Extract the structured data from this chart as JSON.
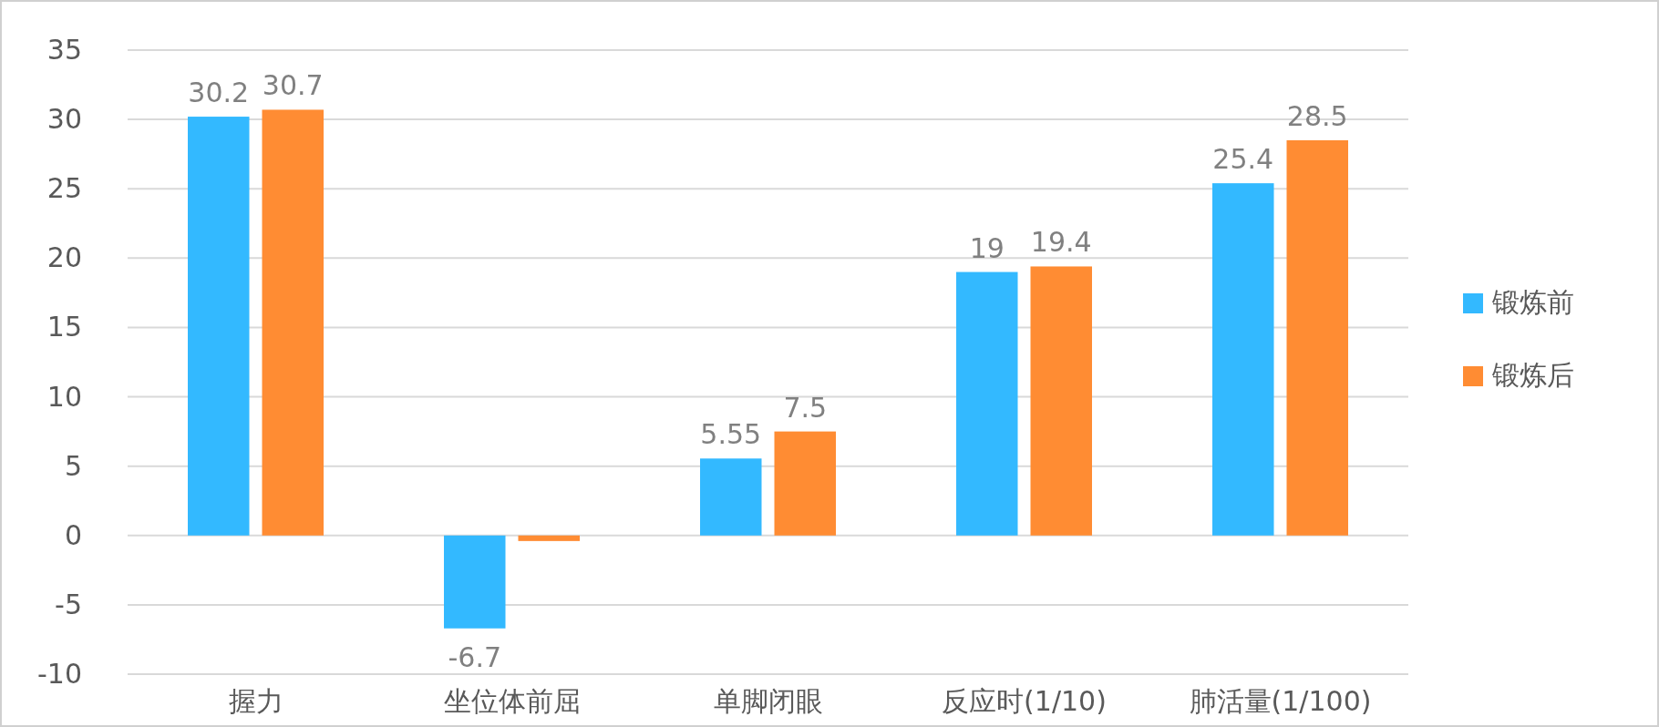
{
  "chart_data": {
    "type": "bar",
    "categories": [
      "握力",
      "坐位体前屈",
      "单脚闭眼",
      "反应时(1/10)",
      "肺活量(1/100)"
    ],
    "series": [
      {
        "name": "锻炼前",
        "color": "#33b9ff",
        "values": [
          30.2,
          -6.7,
          5.55,
          19,
          25.4
        ],
        "value_labels": [
          "30.2",
          "-6.7",
          "5.55",
          "19",
          "25.4"
        ]
      },
      {
        "name": "锻炼后",
        "color": "#ff8c33",
        "values": [
          30.7,
          -0.4,
          7.5,
          19.4,
          28.5
        ],
        "value_labels": [
          "30.7",
          null,
          "7.5",
          "19.4",
          "28.5"
        ]
      }
    ],
    "ylim": [
      -10,
      35
    ],
    "yticks": [
      -10,
      -5,
      0,
      5,
      10,
      15,
      20,
      25,
      30,
      35
    ],
    "grid": "y",
    "legend": "right"
  }
}
